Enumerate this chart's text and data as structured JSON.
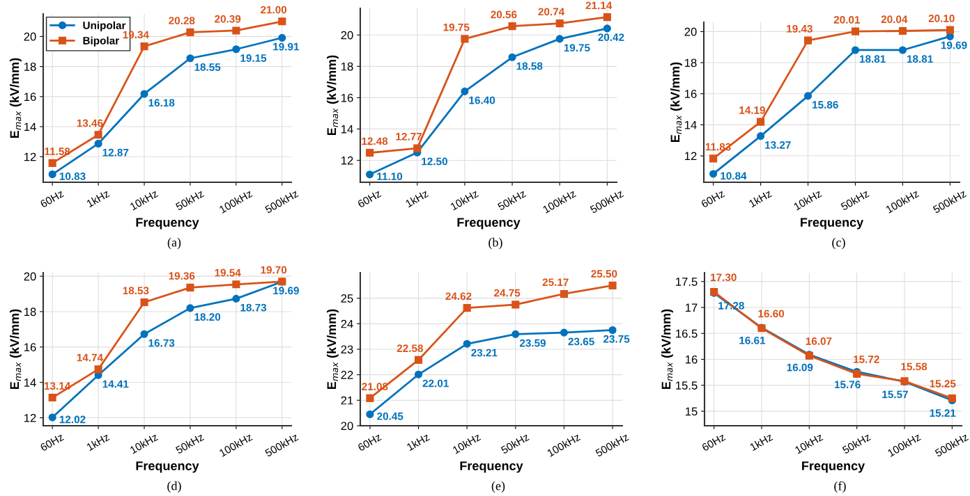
{
  "chart_data": [
    {
      "type": "line",
      "xlabel": "Frequency",
      "ylabel": "E$_{max}$ (kV/mm)",
      "categories": [
        "60Hz",
        "1kHz",
        "10kHz",
        "50kHz",
        "100kHz",
        "500kHz"
      ],
      "ylim": [
        10.3,
        21.5
      ],
      "yticks": [
        12,
        14,
        16,
        18,
        20
      ],
      "grid": true,
      "legend": "top left",
      "annotations": [
        "(a)"
      ],
      "series": [
        {
          "name": "Unipolar",
          "color": "#0072bd",
          "marker": "circle",
          "values": [
            10.83,
            12.87,
            16.18,
            18.55,
            19.15,
            19.91
          ],
          "value_labels": [
            "10.83",
            "12.87",
            "16.18",
            "18.55",
            "19.15",
            "19.91"
          ]
        },
        {
          "name": "Bipolar",
          "color": "#d95319",
          "marker": "square",
          "values": [
            11.58,
            13.46,
            19.34,
            20.28,
            20.39,
            21.0
          ],
          "value_labels": [
            "11.58",
            "13.46",
            "19.34",
            "20.28",
            "20.39",
            "21.00"
          ]
        }
      ]
    },
    {
      "type": "line",
      "xlabel": "Frequency",
      "ylabel": "E$_{max}$ (kV/mm)",
      "categories": [
        "60Hz",
        "1kHz",
        "10kHz",
        "50kHz",
        "100kHz",
        "500kHz"
      ],
      "ylim": [
        10.6,
        21.7
      ],
      "yticks": [
        12,
        14,
        16,
        18,
        20
      ],
      "grid": true,
      "annotations": [
        "(b)"
      ],
      "series": [
        {
          "color": "#0072bd",
          "marker": "circle",
          "values": [
            11.1,
            12.5,
            16.4,
            18.58,
            19.75,
            20.42
          ],
          "value_labels": [
            "11.10",
            "12.50",
            "16.40",
            "18.58",
            "19.75",
            "20.42"
          ]
        },
        {
          "color": "#d95319",
          "marker": "square",
          "values": [
            12.48,
            12.77,
            19.75,
            20.56,
            20.74,
            21.14
          ],
          "value_labels": [
            "12.48",
            "12.77",
            "19.75",
            "20.56",
            "20.74",
            "21.14"
          ]
        }
      ]
    },
    {
      "type": "line",
      "xlabel": "Frequency",
      "ylabel": "E$_{max}$ (kV/mm)",
      "categories": [
        "60Hz",
        "1kHz",
        "10kHz",
        "50kHz",
        "100kHz",
        "500kHz"
      ],
      "ylim": [
        10.3,
        20.6
      ],
      "yticks": [
        12,
        14,
        16,
        18,
        20
      ],
      "grid": true,
      "annotations": [
        "(c)"
      ],
      "series": [
        {
          "color": "#0072bd",
          "marker": "circle",
          "values": [
            10.84,
            13.27,
            15.86,
            18.81,
            18.81,
            19.69
          ],
          "value_labels": [
            "10.84",
            "13.27",
            "15.86",
            "18.81",
            "18.81",
            "19.69"
          ]
        },
        {
          "color": "#d95319",
          "marker": "square",
          "values": [
            11.83,
            14.19,
            19.43,
            20.01,
            20.04,
            20.1
          ],
          "value_labels": [
            "11.83",
            "14.19",
            "19.43",
            "20.01",
            "20.04",
            "20.10"
          ]
        }
      ]
    },
    {
      "type": "line",
      "xlabel": "Frequency",
      "ylabel": "E$_{max}$ (kV/mm)",
      "categories": [
        "60Hz",
        "1kHz",
        "10kHz",
        "50kHz",
        "100kHz",
        "500kHz"
      ],
      "ylim": [
        11.55,
        20.2
      ],
      "yticks": [
        12,
        14,
        16,
        18,
        20
      ],
      "grid": true,
      "annotations": [
        "(d)"
      ],
      "series": [
        {
          "color": "#0072bd",
          "marker": "circle",
          "values": [
            12.02,
            14.41,
            16.73,
            18.2,
            18.73,
            19.69
          ],
          "value_labels": [
            "12.02",
            "14.41",
            "16.73",
            "18.20",
            "18.73",
            "19.69"
          ]
        },
        {
          "color": "#d95319",
          "marker": "square",
          "values": [
            13.14,
            14.74,
            18.53,
            19.36,
            19.54,
            19.7
          ],
          "value_labels": [
            "13.14",
            "14.74",
            "18.53",
            "19.36",
            "19.54",
            "19.70"
          ]
        }
      ]
    },
    {
      "type": "line",
      "xlabel": "Frequency",
      "ylabel": "E$_{max}$ (kV/mm)",
      "categories": [
        "60Hz",
        "1kHz",
        "10kHz",
        "50kHz",
        "100kHz",
        "500kHz"
      ],
      "ylim": [
        20,
        26
      ],
      "yticks": [
        20,
        21,
        22,
        23,
        24,
        25
      ],
      "grid": true,
      "annotations": [
        "(e)"
      ],
      "series": [
        {
          "color": "#0072bd",
          "marker": "circle",
          "values": [
            20.45,
            22.01,
            23.21,
            23.59,
            23.65,
            23.75
          ],
          "value_labels": [
            "20.45",
            "22.01",
            "23.21",
            "23.59",
            "23.65",
            "23.75"
          ]
        },
        {
          "color": "#d95319",
          "marker": "square",
          "values": [
            21.08,
            22.58,
            24.62,
            24.75,
            25.17,
            25.5
          ],
          "value_labels": [
            "21.08",
            "22.58",
            "24.62",
            "24.75",
            "25.17",
            "25.50"
          ]
        }
      ]
    },
    {
      "type": "line",
      "xlabel": "Frequency",
      "ylabel": "E$_{max}$ (kV/mm)",
      "categories": [
        "60Hz",
        "1kHz",
        "10kHz",
        "50kHz",
        "100kHz",
        "500kHz"
      ],
      "ylim": [
        14.72,
        17.67
      ],
      "yticks": [
        15,
        15.5,
        16,
        16.5,
        17,
        17.5
      ],
      "grid": true,
      "annotations": [
        "(f)"
      ],
      "series": [
        {
          "color": "#0072bd",
          "marker": "circle",
          "values": [
            17.28,
            16.61,
            16.09,
            15.76,
            15.57,
            15.21
          ],
          "value_labels": [
            "17.28",
            "16.61",
            "16.09",
            "15.76",
            "15.57",
            "15.21"
          ]
        },
        {
          "color": "#d95319",
          "marker": "square",
          "values": [
            17.3,
            16.6,
            16.07,
            15.72,
            15.58,
            15.25
          ],
          "value_labels": [
            "17.30",
            "16.60",
            "16.07",
            "15.72",
            "15.58",
            "15.25"
          ]
        }
      ]
    }
  ]
}
